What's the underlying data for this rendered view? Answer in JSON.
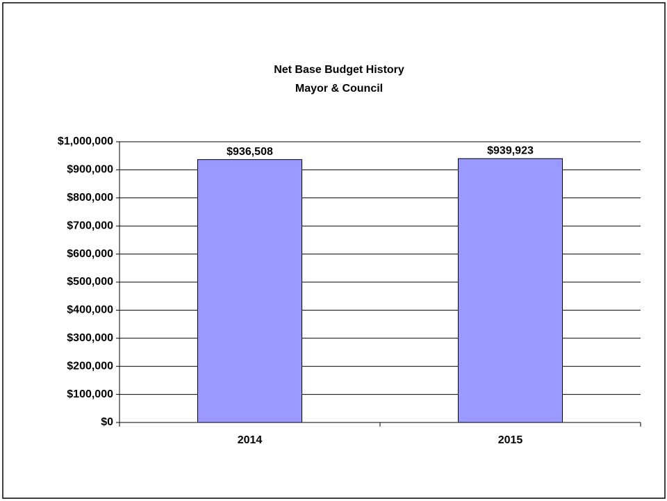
{
  "chart_data": {
    "type": "bar",
    "title": "Net Base Budget History",
    "subtitle": "Mayor & Council",
    "categories": [
      "2014",
      "2015"
    ],
    "values": [
      936508,
      939923
    ],
    "value_labels": [
      "$936,508",
      "$939,923"
    ],
    "color": "#9999ff",
    "ylim": [
      0,
      1000000
    ],
    "yticks": [
      {
        "value": 0,
        "label": "$0"
      },
      {
        "value": 100000,
        "label": "$100,000"
      },
      {
        "value": 200000,
        "label": "$200,000"
      },
      {
        "value": 300000,
        "label": "$300,000"
      },
      {
        "value": 400000,
        "label": "$400,000"
      },
      {
        "value": 500000,
        "label": "$500,000"
      },
      {
        "value": 600000,
        "label": "$600,000"
      },
      {
        "value": 700000,
        "label": "$700,000"
      },
      {
        "value": 800000,
        "label": "$800,000"
      },
      {
        "value": 900000,
        "label": "$900,000"
      },
      {
        "value": 1000000,
        "label": "$1,000,000"
      }
    ],
    "grid": true
  }
}
